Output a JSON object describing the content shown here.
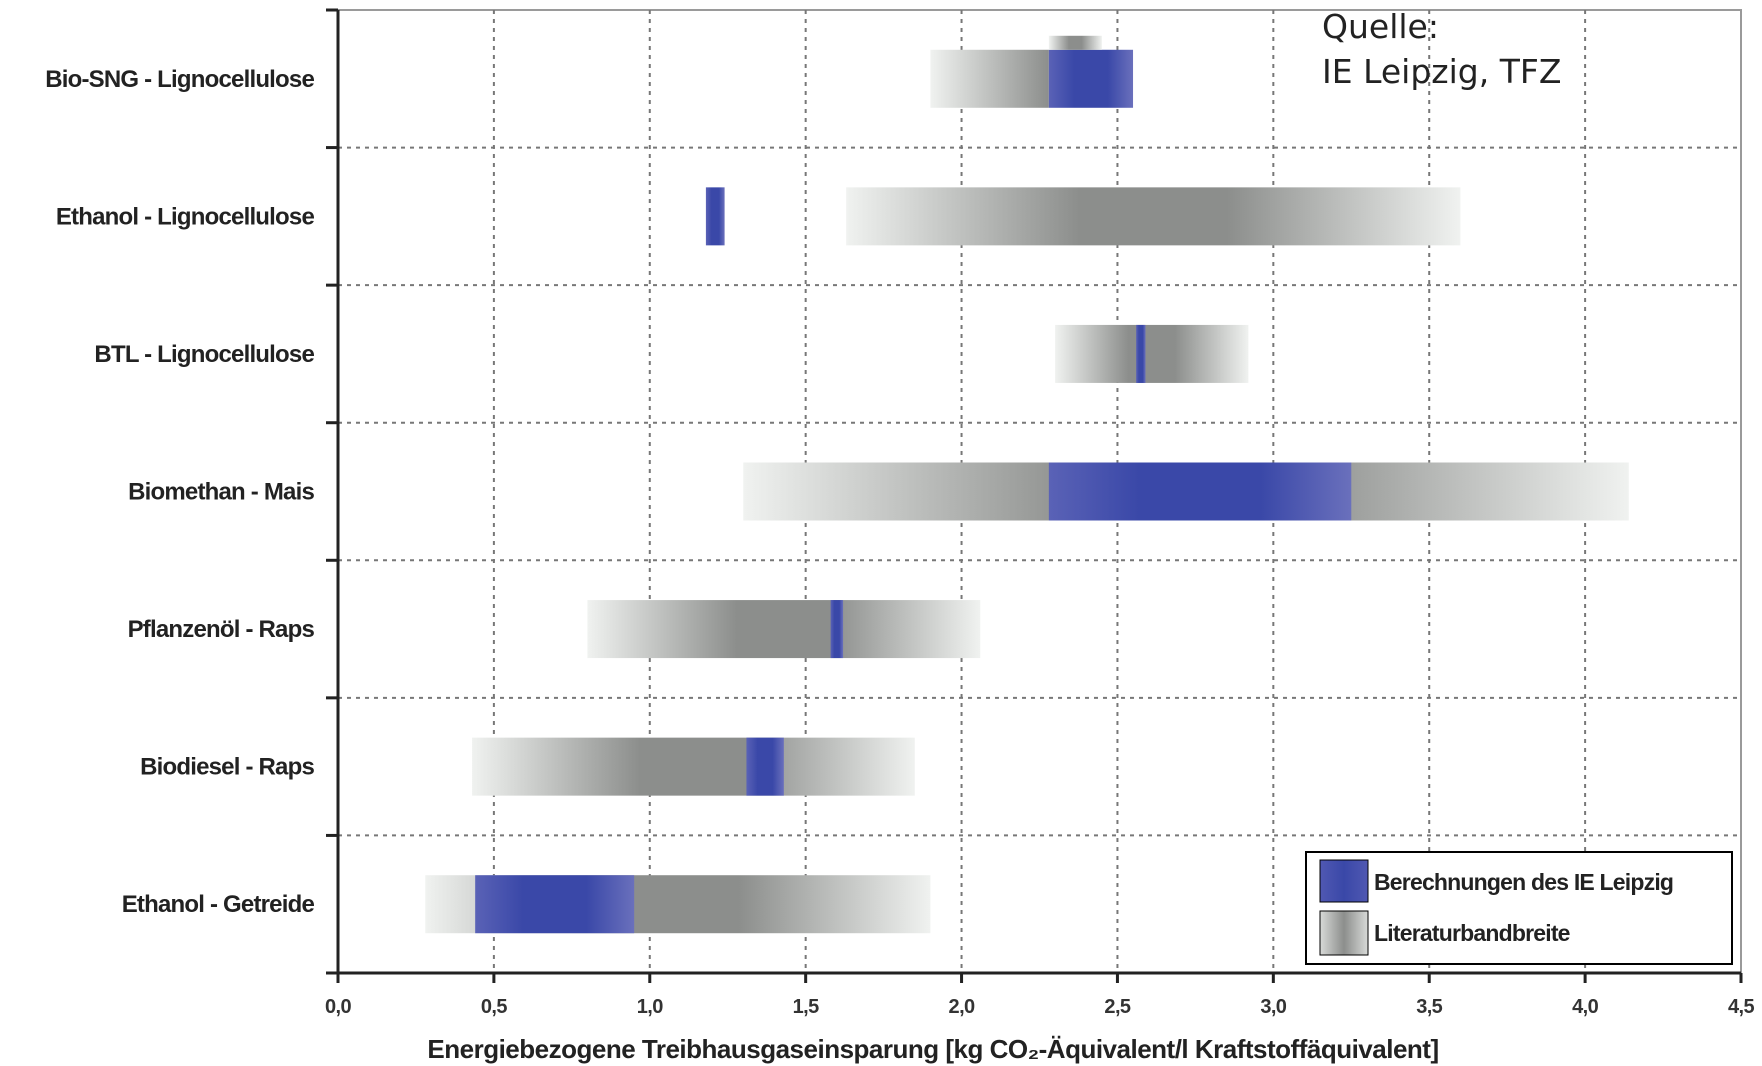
{
  "chart_data": {
    "type": "range-bar",
    "xlabel": "Energiebezogene Treibhausgaseinsparung [kg CO₂-Äquivalent/l Kraftstoffäquivalent]",
    "xlim": [
      0,
      4.5
    ],
    "xticks": [
      "0,0",
      "0,5",
      "1,0",
      "1,5",
      "2,0",
      "2,5",
      "3,0",
      "3,5",
      "4,0",
      "4,5"
    ],
    "grid": true,
    "legend_position": "bottom-right",
    "source_lines": [
      "Quelle:",
      "IE Leipzig, TFZ"
    ],
    "categories": [
      "Bio-SNG - Lignocellulose",
      "Ethanol - Lignocellulose",
      "BTL - Lignocellulose",
      "Biomethan - Mais",
      "Pflanzenöl - Raps",
      "Biodiesel - Raps",
      "Ethanol - Getreide"
    ],
    "series": [
      {
        "name": "Literaturbandbreite",
        "ranges": [
          [
            1.9,
            2.28
          ],
          [
            1.63,
            3.6
          ],
          [
            2.3,
            2.92
          ],
          [
            1.3,
            4.14
          ],
          [
            0.8,
            2.06
          ],
          [
            0.43,
            1.85
          ],
          [
            0.28,
            1.9
          ]
        ]
      },
      {
        "name": "Berechnungen des IE Leipzig",
        "ranges": [
          [
            2.28,
            2.55
          ],
          [
            1.18,
            1.24
          ],
          [
            2.56,
            2.59
          ],
          [
            2.28,
            3.25
          ],
          [
            1.58,
            1.62
          ],
          [
            1.31,
            1.43
          ],
          [
            0.44,
            0.95
          ]
        ]
      }
    ],
    "extra_range": {
      "category": "Bio-SNG - Lignocellulose",
      "range": [
        2.28,
        2.45
      ]
    },
    "colors": {
      "blue": "#3a48a8",
      "grey": "#8c8e8c",
      "light": "#f0f2f0",
      "grid": "#777777",
      "axis": "#222222"
    }
  }
}
